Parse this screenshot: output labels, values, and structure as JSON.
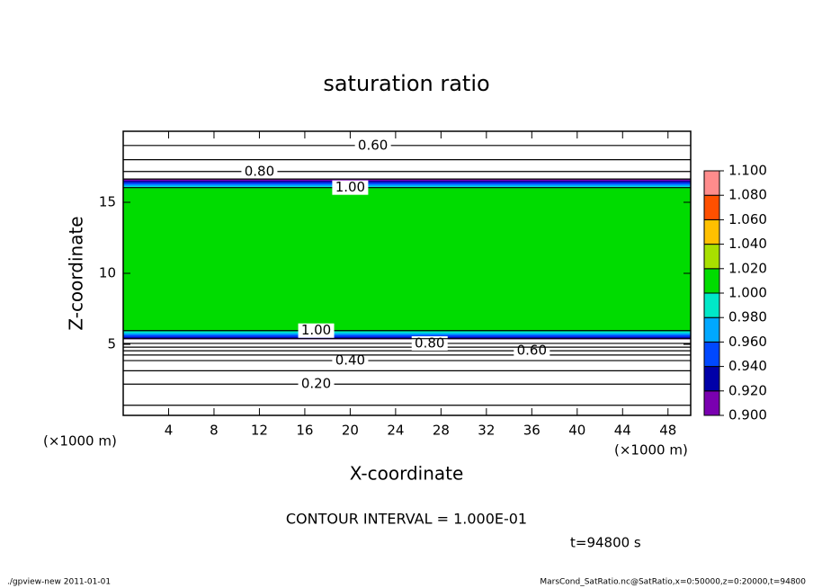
{
  "chart_data": {
    "type": "contour",
    "title": "saturation ratio",
    "xlabel": "X-coordinate",
    "ylabel": "Z-coordinate",
    "x_unit": "(×1000 m)",
    "y_unit": "(×1000 m)",
    "xlim": [
      0,
      50
    ],
    "ylim": [
      0,
      20
    ],
    "xticks": [
      4,
      8,
      12,
      16,
      20,
      24,
      28,
      32,
      36,
      40,
      44,
      48
    ],
    "yticks": [
      5,
      10,
      15
    ],
    "profile": {
      "y": [
        0,
        1,
        2,
        3,
        4,
        4.5,
        5,
        5.5,
        6,
        10,
        16,
        16.5,
        17,
        18,
        19,
        20
      ],
      "values": [
        0.05,
        0.12,
        0.18,
        0.28,
        0.42,
        0.58,
        0.78,
        0.93,
        1.005,
        1.005,
        1.005,
        0.93,
        0.82,
        0.7,
        0.6,
        0.55
      ]
    },
    "contour_interval": {
      "value": 0.1,
      "label": "CONTOUR INTERVAL = 1.000E-01"
    },
    "contour_labels": [
      {
        "value": 0.2,
        "label": "0.20"
      },
      {
        "value": 0.4,
        "label": "0.40"
      },
      {
        "value": 0.6,
        "label": "0.60"
      },
      {
        "value": 0.8,
        "label": "0.80"
      },
      {
        "value": 1.0,
        "label": "1.00"
      }
    ],
    "colorbar": {
      "levels": [
        {
          "value": 0.9,
          "label": "0.900"
        },
        {
          "value": 0.92,
          "label": "0.920"
        },
        {
          "value": 0.94,
          "label": "0.940"
        },
        {
          "value": 0.96,
          "label": "0.960"
        },
        {
          "value": 0.98,
          "label": "0.980"
        },
        {
          "value": 1.0,
          "label": "1.000"
        },
        {
          "value": 1.02,
          "label": "1.020"
        },
        {
          "value": 1.04,
          "label": "1.040"
        },
        {
          "value": 1.06,
          "label": "1.060"
        },
        {
          "value": 1.08,
          "label": "1.080"
        },
        {
          "value": 1.1,
          "label": "1.100"
        }
      ],
      "colors": [
        "#7a00b0",
        "#0000a8",
        "#0048ff",
        "#00a8ff",
        "#00e8c8",
        "#00dc00",
        "#a8e000",
        "#ffc000",
        "#ff5000",
        "#ff8c8c"
      ]
    },
    "time_label": "t=94800 s",
    "footer_left": "./gpview-new  2011-01-01",
    "footer_right": "MarsCond_SatRatio.nc@SatRatio,x=0:50000,z=0:20000,t=94800"
  }
}
